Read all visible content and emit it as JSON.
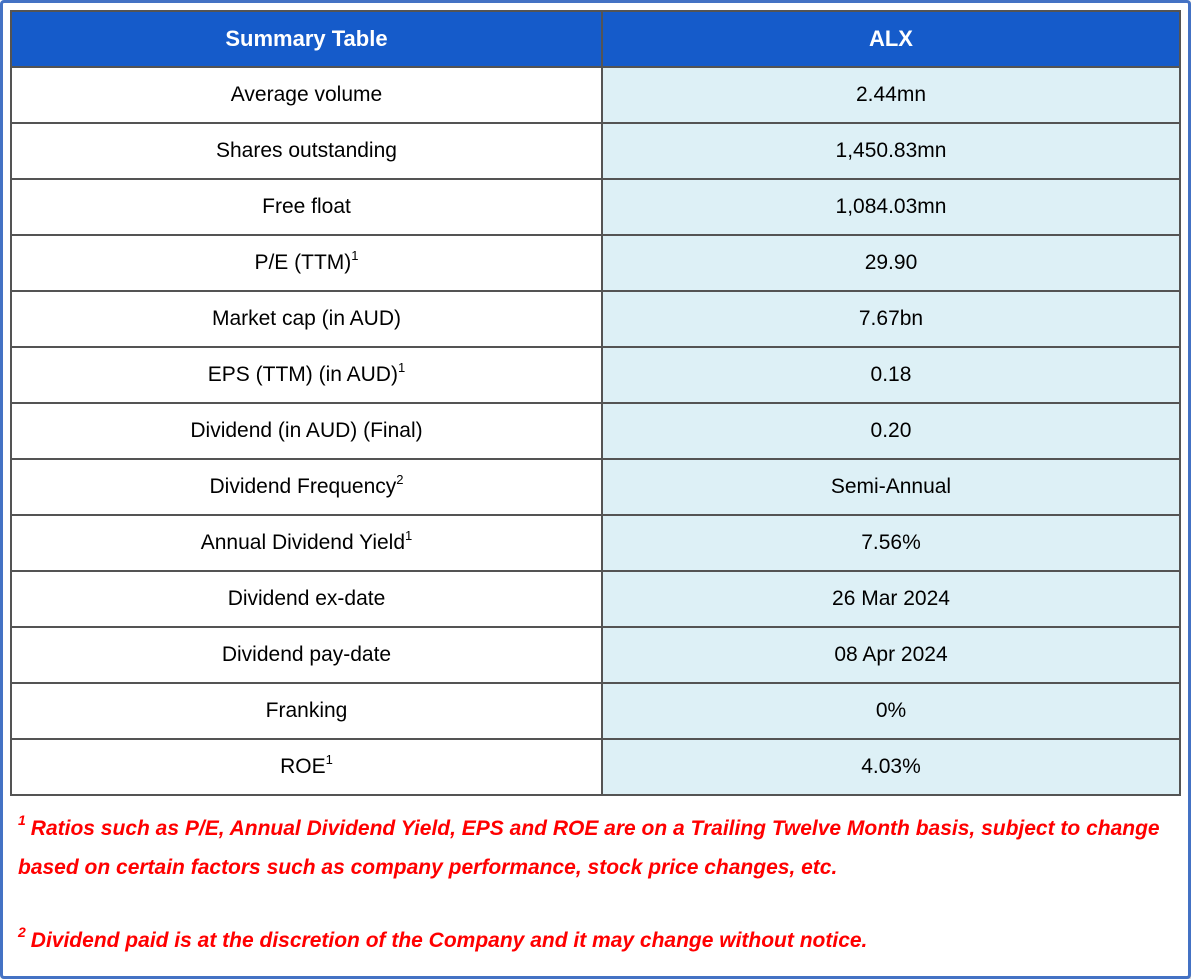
{
  "table": {
    "header": {
      "label_col": "Summary Table",
      "value_col": "ALX"
    },
    "rows": [
      {
        "label": "Average volume",
        "sup": "",
        "value": "2.44mn"
      },
      {
        "label": "Shares outstanding",
        "sup": "",
        "value": "1,450.83mn"
      },
      {
        "label": "Free float",
        "sup": "",
        "value": "1,084.03mn"
      },
      {
        "label": "P/E (TTM)",
        "sup": "1",
        "value": "29.90"
      },
      {
        "label": "Market cap (in AUD)",
        "sup": "",
        "value": "7.67bn"
      },
      {
        "label": "EPS (TTM) (in AUD)",
        "sup": "1",
        "value": "0.18"
      },
      {
        "label": "Dividend (in AUD) (Final)",
        "sup": "",
        "value": "0.20"
      },
      {
        "label": "Dividend Frequency",
        "sup": "2",
        "value": "Semi-Annual"
      },
      {
        "label": "Annual Dividend Yield",
        "sup": "1",
        "value": "7.56%"
      },
      {
        "label": "Dividend ex-date",
        "sup": "",
        "value": "26 Mar 2024"
      },
      {
        "label": "Dividend pay-date",
        "sup": "",
        "value": "08 Apr 2024"
      },
      {
        "label": "Franking",
        "sup": "",
        "value": "0%"
      },
      {
        "label": "ROE",
        "sup": "1",
        "value": "4.03%"
      }
    ]
  },
  "footnotes": [
    {
      "marker": "1",
      "text": "Ratios such as P/E, Annual Dividend Yield, EPS and ROE are on a Trailing Twelve Month basis, subject to change based on certain factors such as company performance, stock price changes, etc."
    },
    {
      "marker": "2",
      "text": "Dividend paid is at the discretion of the Company and it may change without notice."
    }
  ],
  "colors": {
    "header_bg": "#155BCA",
    "header_text": "#FFFFFF",
    "value_bg": "#DDF0F6",
    "cell_border": "#545454",
    "outer_border": "#4472C4",
    "footnote": "#FF0000",
    "label_text": "#000000"
  },
  "chart_data": {
    "type": "table",
    "title": "Summary Table",
    "columns": [
      "Summary Table",
      "ALX"
    ],
    "rows": [
      [
        "Average volume",
        "2.44mn"
      ],
      [
        "Shares outstanding",
        "1,450.83mn"
      ],
      [
        "Free float",
        "1,084.03mn"
      ],
      [
        "P/E (TTM)¹",
        "29.90"
      ],
      [
        "Market cap (in AUD)",
        "7.67bn"
      ],
      [
        "EPS (TTM) (in AUD)¹",
        "0.18"
      ],
      [
        "Dividend (in AUD) (Final)",
        "0.20"
      ],
      [
        "Dividend Frequency²",
        "Semi-Annual"
      ],
      [
        "Annual Dividend Yield¹",
        "7.56%"
      ],
      [
        "Dividend ex-date",
        "26 Mar 2024"
      ],
      [
        "Dividend pay-date",
        "08 Apr 2024"
      ],
      [
        "Franking",
        "0%"
      ],
      [
        "ROE¹",
        "4.03%"
      ]
    ],
    "notes": [
      "¹ Ratios such as P/E, Annual Dividend Yield, EPS and ROE are on a Trailing Twelve Month basis, subject to change based on certain factors such as company performance, stock price changes, etc.",
      "² Dividend paid is at the discretion of the Company and it may change without notice."
    ]
  }
}
